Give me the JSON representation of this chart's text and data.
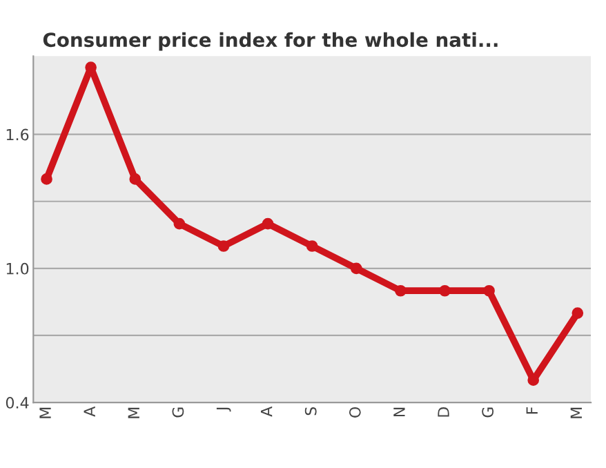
{
  "chart_data": {
    "type": "line",
    "title": "Consumer price index for the whole nati...",
    "categories": [
      "M",
      "A",
      "M",
      "G",
      "J",
      "A",
      "S",
      "O",
      "N",
      "D",
      "G",
      "F",
      "M"
    ],
    "series": [
      {
        "color": "#d0151c",
        "values": [
          1.4,
          1.9,
          1.4,
          1.2,
          1.1,
          1.2,
          1.1,
          1.0,
          0.9,
          0.9,
          0.9,
          0.5,
          0.8
        ]
      }
    ],
    "ylim": [
      0.4,
      1.95
    ],
    "yticks": [
      0.4,
      {
        "value": 0.7,
        "label": null
      },
      {
        "value": 1.0,
        "label": "1.0"
      },
      {
        "value": 1.3,
        "label": null
      },
      1.6
    ],
    "grid": "y",
    "marker": "circle",
    "line_style": "solid",
    "legend": false
  }
}
